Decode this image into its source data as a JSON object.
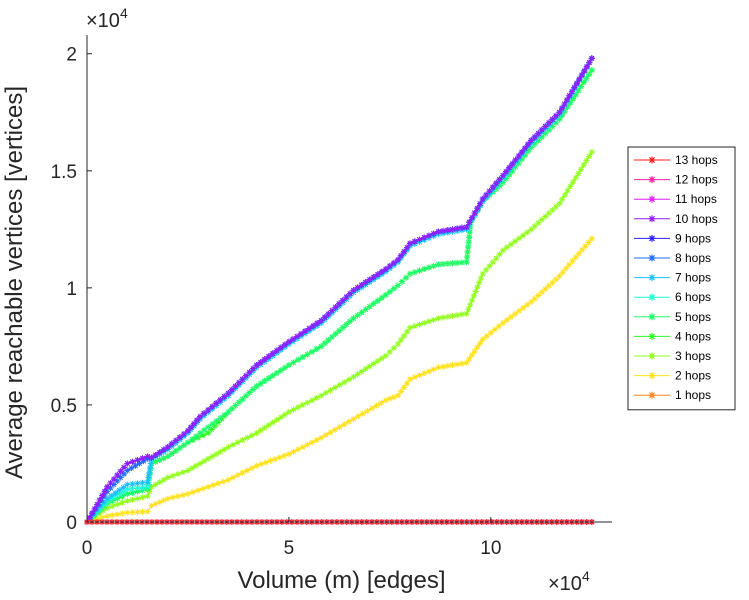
{
  "chart_data": {
    "type": "line",
    "title": "",
    "xlabel": "Volume (m) [edges]",
    "ylabel": "Average reachable vertices [vertices]",
    "x_multiplier": "×10",
    "x_multiplier_exp": "4",
    "y_multiplier": "×10",
    "y_multiplier_exp": "4",
    "xlim": [
      0,
      130000
    ],
    "ylim": [
      0,
      20800
    ],
    "xticks": [
      0,
      50000,
      100000
    ],
    "xtick_labels": [
      "0",
      "5",
      "10"
    ],
    "yticks": [
      0,
      5000,
      10000,
      15000,
      20000
    ],
    "ytick_labels": [
      "0",
      "0.5",
      "1",
      "1.5",
      "2"
    ],
    "grid": false,
    "legend_position": "right",
    "series": [
      {
        "name": "13 hops",
        "color": "#ff1f1f",
        "x": [
          0,
          125000
        ],
        "y": [
          0,
          0
        ]
      },
      {
        "name": "12 hops",
        "color": "#ff1fa8",
        "x": [
          0,
          125000
        ],
        "y": [
          0,
          0
        ]
      },
      {
        "name": "11 hops",
        "color": "#e21fff",
        "x": [
          0,
          125000
        ],
        "y": [
          0,
          0
        ]
      },
      {
        "name": "10 hops",
        "color": "#931fff",
        "x": [
          0,
          5000,
          10000,
          15000,
          16000,
          20000,
          25000,
          28000,
          35000,
          42000,
          50000,
          58000,
          66000,
          74000,
          77000,
          80000,
          87000,
          94000,
          98000,
          103000,
          110000,
          117000,
          125000
        ],
        "y": [
          0,
          1500,
          2500,
          2800,
          2750,
          3200,
          3900,
          4500,
          5500,
          6700,
          7700,
          8600,
          9900,
          10800,
          11200,
          11900,
          12400,
          12600,
          13800,
          14800,
          16300,
          17500,
          19800
        ]
      },
      {
        "name": "9 hops",
        "color": "#2a1fff",
        "x": [
          0,
          5000,
          10000,
          15000,
          16000,
          20000,
          25000,
          28000,
          35000,
          42000,
          50000,
          58000,
          66000,
          74000,
          77000,
          80000,
          87000,
          94000,
          98000,
          103000,
          110000,
          117000,
          125000
        ],
        "y": [
          0,
          1500,
          2500,
          2800,
          2750,
          3200,
          3900,
          4500,
          5500,
          6700,
          7700,
          8600,
          9900,
          10800,
          11200,
          11900,
          12400,
          12600,
          13800,
          14800,
          16300,
          17500,
          19800
        ]
      },
      {
        "name": "8 hops",
        "color": "#1f6cff",
        "x": [
          0,
          5000,
          10000,
          15000,
          16000,
          20000,
          25000,
          28000,
          35000,
          42000,
          50000,
          58000,
          66000,
          74000,
          77000,
          80000,
          87000,
          94000,
          98000,
          103000,
          110000,
          117000,
          125000
        ],
        "y": [
          0,
          1300,
          2200,
          2700,
          2750,
          3200,
          3900,
          4500,
          5500,
          6700,
          7700,
          8600,
          9900,
          10800,
          11200,
          11900,
          12400,
          12600,
          13800,
          14800,
          16300,
          17500,
          19800
        ]
      },
      {
        "name": "7 hops",
        "color": "#1fbfff",
        "x": [
          0,
          5000,
          10000,
          15000,
          16000,
          20000,
          25000,
          28000,
          35000,
          42000,
          50000,
          58000,
          66000,
          74000,
          77000,
          80000,
          87000,
          94000,
          98000,
          103000,
          110000,
          117000,
          125000
        ],
        "y": [
          0,
          1000,
          1600,
          1700,
          2700,
          3100,
          3800,
          4400,
          5400,
          6600,
          7600,
          8500,
          9800,
          10700,
          11100,
          11800,
          12300,
          12500,
          13700,
          14700,
          16200,
          17400,
          19800
        ]
      },
      {
        "name": "6 hops",
        "color": "#1fffd6",
        "x": [
          0,
          5000,
          10000,
          15000,
          16000,
          20000,
          25000,
          28000,
          35000,
          42000,
          50000,
          58000,
          66000,
          74000,
          77000,
          80000,
          87000,
          94000,
          98000,
          103000,
          110000,
          117000,
          125000
        ],
        "y": [
          0,
          900,
          1400,
          1500,
          2700,
          3100,
          3800,
          4400,
          5400,
          6600,
          7600,
          8500,
          9800,
          10700,
          11100,
          11800,
          12300,
          12500,
          13700,
          14700,
          16200,
          17400,
          19800
        ]
      },
      {
        "name": "5 hops",
        "color": "#1fff6c",
        "x": [
          0,
          5000,
          10000,
          15000,
          16000,
          20000,
          25000,
          28000,
          35000,
          42000,
          50000,
          58000,
          66000,
          74000,
          77000,
          80000,
          87000,
          94000,
          95000,
          98000,
          103000,
          110000,
          117000,
          125000
        ],
        "y": [
          0,
          800,
          1200,
          1400,
          2500,
          2800,
          3400,
          3800,
          4700,
          5800,
          6700,
          7500,
          8700,
          9700,
          10100,
          10600,
          11000,
          11100,
          12800,
          13700,
          14500,
          16000,
          17200,
          19300
        ]
      },
      {
        "name": "4 hops",
        "color": "#2aff1f",
        "x": [
          0,
          5000,
          10000,
          15000,
          16000,
          20000,
          25000,
          30000,
          35000,
          42000,
          50000,
          58000,
          66000,
          74000,
          77000,
          80000,
          87000,
          94000,
          95000,
          98000,
          103000,
          110000,
          117000,
          125000
        ],
        "y": [
          0,
          800,
          1200,
          1400,
          2500,
          2800,
          3400,
          3800,
          4700,
          5800,
          6700,
          7500,
          8700,
          9700,
          10100,
          10600,
          11000,
          11100,
          12800,
          13700,
          14500,
          16000,
          17200,
          19300
        ]
      },
      {
        "name": "3 hops",
        "color": "#93ff1f",
        "x": [
          0,
          5000,
          10000,
          15000,
          16000,
          20000,
          25000,
          30000,
          35000,
          42000,
          50000,
          58000,
          66000,
          74000,
          77000,
          80000,
          87000,
          94000,
          98000,
          103000,
          110000,
          117000,
          125000
        ],
        "y": [
          0,
          600,
          900,
          1100,
          1500,
          1900,
          2200,
          2700,
          3200,
          3800,
          4700,
          5400,
          6200,
          7100,
          7600,
          8300,
          8700,
          8900,
          10600,
          11600,
          12500,
          13600,
          15800
        ]
      },
      {
        "name": "2 hops",
        "color": "#ffe21f",
        "x": [
          0,
          5000,
          10000,
          15000,
          16000,
          20000,
          25000,
          30000,
          35000,
          42000,
          50000,
          58000,
          66000,
          74000,
          77000,
          80000,
          87000,
          94000,
          98000,
          103000,
          110000,
          117000,
          125000
        ],
        "y": [
          0,
          250,
          400,
          450,
          700,
          1000,
          1200,
          1500,
          1800,
          2400,
          2900,
          3600,
          4400,
          5200,
          5400,
          6100,
          6600,
          6800,
          7800,
          8500,
          9400,
          10500,
          12100
        ]
      },
      {
        "name": "1 hops",
        "color": "#ff871f",
        "x": [
          0,
          125000
        ],
        "y": [
          0,
          0
        ]
      }
    ]
  }
}
